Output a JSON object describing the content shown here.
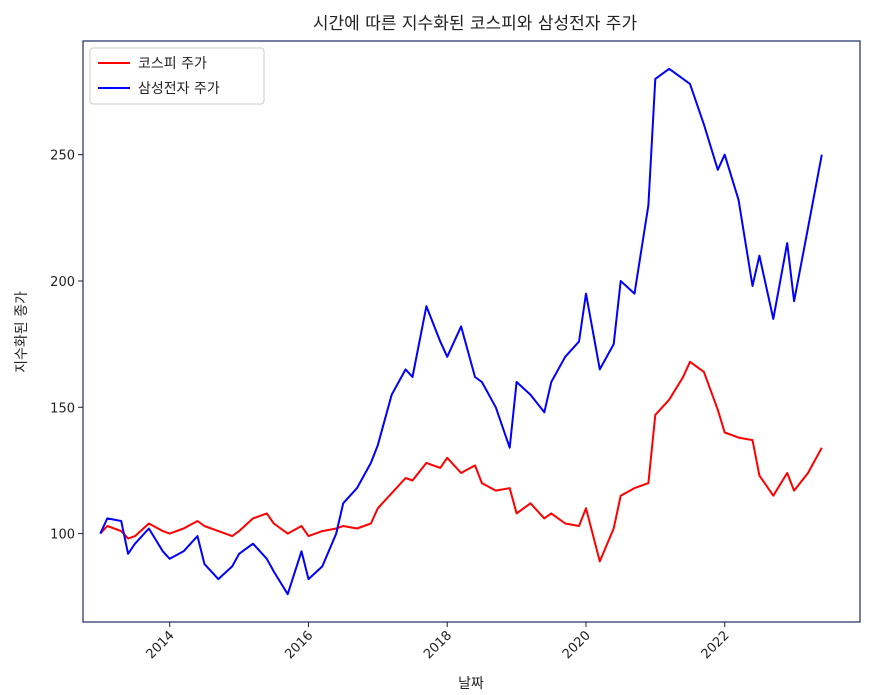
{
  "chart_data": {
    "type": "line",
    "title": "시간에 따른 지수화된 코스피와 삼성전자 주가",
    "xlabel": "날짜",
    "ylabel": "지수화된 종가",
    "xlim": [
      2012.75,
      2023.95
    ],
    "ylim": [
      65,
      295
    ],
    "x_ticks": [
      2014,
      2016,
      2018,
      2020,
      2022
    ],
    "x_tick_labels": [
      "2014",
      "2016",
      "2018",
      "2020",
      "2022"
    ],
    "y_ticks": [
      100,
      150,
      200,
      250
    ],
    "y_tick_labels": [
      "100",
      "150",
      "200",
      "250"
    ],
    "legend_position": "top-left",
    "grid": false,
    "series": [
      {
        "name": "코스피 주가",
        "color": "#ff0000",
        "x": [
          2013.0,
          2013.1,
          2013.3,
          2013.4,
          2013.5,
          2013.7,
          2013.9,
          2014.0,
          2014.2,
          2014.4,
          2014.5,
          2014.7,
          2014.9,
          2015.0,
          2015.2,
          2015.4,
          2015.5,
          2015.7,
          2015.9,
          2016.0,
          2016.2,
          2016.4,
          2016.5,
          2016.7,
          2016.9,
          2017.0,
          2017.2,
          2017.4,
          2017.5,
          2017.7,
          2017.9,
          2018.0,
          2018.2,
          2018.4,
          2018.5,
          2018.7,
          2018.9,
          2019.0,
          2019.2,
          2019.4,
          2019.5,
          2019.7,
          2019.9,
          2020.0,
          2020.2,
          2020.4,
          2020.5,
          2020.7,
          2020.9,
          2021.0,
          2021.2,
          2021.4,
          2021.5,
          2021.7,
          2021.9,
          2022.0,
          2022.2,
          2022.4,
          2022.5,
          2022.7,
          2022.9,
          2023.0,
          2023.2,
          2023.4
        ],
        "y": [
          100,
          103,
          101,
          98,
          99,
          104,
          101,
          100,
          102,
          105,
          103,
          101,
          99,
          101,
          106,
          108,
          104,
          100,
          103,
          99,
          101,
          102,
          103,
          102,
          104,
          110,
          116,
          122,
          121,
          128,
          126,
          130,
          124,
          127,
          120,
          117,
          118,
          108,
          112,
          106,
          108,
          104,
          103,
          110,
          89,
          102,
          115,
          118,
          120,
          147,
          153,
          162,
          168,
          164,
          149,
          140,
          138,
          137,
          123,
          115,
          124,
          117,
          124,
          134
        ]
      },
      {
        "name": "삼성전자 주가",
        "color": "#0000ff",
        "x": [
          2013.0,
          2013.1,
          2013.3,
          2013.4,
          2013.5,
          2013.7,
          2013.9,
          2014.0,
          2014.2,
          2014.4,
          2014.5,
          2014.7,
          2014.9,
          2015.0,
          2015.2,
          2015.4,
          2015.5,
          2015.7,
          2015.9,
          2016.0,
          2016.2,
          2016.4,
          2016.5,
          2016.7,
          2016.9,
          2017.0,
          2017.2,
          2017.4,
          2017.5,
          2017.7,
          2017.9,
          2018.0,
          2018.2,
          2018.4,
          2018.5,
          2018.7,
          2018.9,
          2019.0,
          2019.2,
          2019.4,
          2019.5,
          2019.7,
          2019.9,
          2020.0,
          2020.2,
          2020.4,
          2020.5,
          2020.7,
          2020.9,
          2021.0,
          2021.2,
          2021.4,
          2021.5,
          2021.7,
          2021.9,
          2022.0,
          2022.2,
          2022.4,
          2022.5,
          2022.7,
          2022.9,
          2023.0,
          2023.2,
          2023.4
        ],
        "y": [
          100,
          106,
          105,
          92,
          96,
          102,
          93,
          90,
          93,
          99,
          88,
          82,
          87,
          92,
          96,
          90,
          85,
          76,
          93,
          82,
          87,
          100,
          112,
          118,
          128,
          135,
          155,
          165,
          162,
          190,
          176,
          170,
          182,
          162,
          160,
          150,
          134,
          160,
          155,
          148,
          160,
          170,
          176,
          195,
          165,
          175,
          200,
          195,
          230,
          280,
          284,
          280,
          278,
          262,
          244,
          250,
          232,
          198,
          210,
          185,
          215,
          192,
          221,
          250
        ]
      }
    ]
  }
}
